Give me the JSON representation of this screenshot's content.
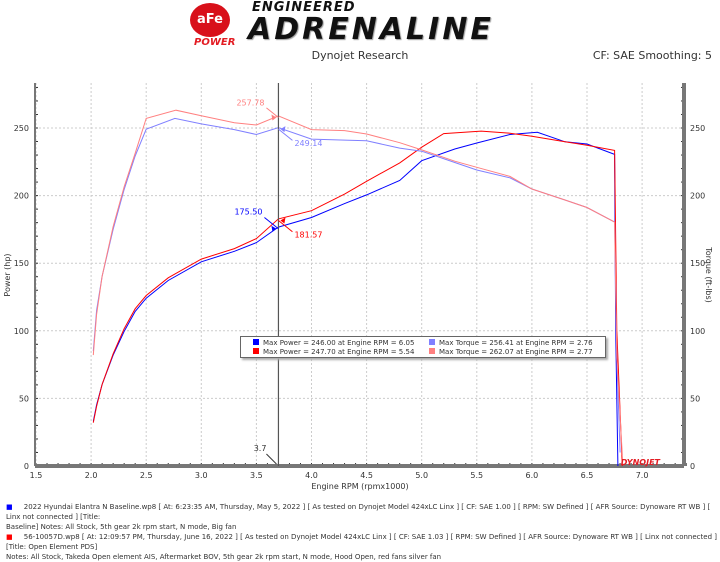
{
  "header": {
    "brand_badge": "aFe",
    "brand_sub": "POWER",
    "tagline_top": "ENGINEERED",
    "tagline_main": "ADRENALINE",
    "subtitle": "Dynojet Research",
    "cf": "CF: SAE Smoothing: 5"
  },
  "chart_data": {
    "type": "line",
    "xlabel": "Engine RPM (rpmx1000)",
    "ylabel": "Power (hp)",
    "y2label": "Torque (ft-lbs)",
    "xlim": [
      1.5,
      7.4
    ],
    "ylim": [
      0,
      283
    ],
    "grid": true,
    "xticks": [
      "1.5",
      "2.0",
      "2.5",
      "3.0",
      "3.5",
      "4.0",
      "4.5",
      "5.0",
      "5.5",
      "6.0",
      "6.5",
      "7.0"
    ],
    "yticks": [
      "0",
      "50",
      "100",
      "150",
      "200",
      "250"
    ],
    "cursor": {
      "x": 3.7,
      "label": "3.7"
    },
    "colors": {
      "power_base": "#0000ff",
      "power_mod": "#ff0000",
      "torque_base": "#8080ff",
      "torque_mod": "#ff8080"
    },
    "series": [
      {
        "key": "power_base",
        "x": [
          2.02,
          2.05,
          2.1,
          2.2,
          2.3,
          2.4,
          2.5,
          2.7,
          3.0,
          3.3,
          3.5,
          3.7,
          4.0,
          4.3,
          4.5,
          4.8,
          5.0,
          5.3,
          5.5,
          5.8,
          6.05,
          6.3,
          6.5,
          6.75,
          6.76,
          6.78
        ],
        "y": [
          33,
          45,
          60,
          82,
          100,
          115,
          125,
          138,
          150,
          160,
          165,
          175.5,
          185,
          193,
          200,
          212,
          225,
          235,
          240,
          244,
          246,
          240,
          237,
          230,
          100,
          0
        ]
      },
      {
        "key": "power_mod",
        "x": [
          2.02,
          2.05,
          2.1,
          2.2,
          2.3,
          2.4,
          2.5,
          2.7,
          3.0,
          3.3,
          3.5,
          3.7,
          4.0,
          4.3,
          4.5,
          4.8,
          5.0,
          5.2,
          5.54,
          5.8,
          6.0,
          6.3,
          6.5,
          6.75,
          6.77,
          6.82
        ],
        "y": [
          32,
          44,
          60,
          83,
          102,
          117,
          127,
          140,
          152,
          162,
          168,
          181.57,
          190,
          200,
          210,
          225,
          235,
          245,
          247.7,
          245,
          244,
          240,
          236,
          233,
          100,
          0
        ]
      },
      {
        "key": "torque_base",
        "x": [
          2.02,
          2.05,
          2.1,
          2.2,
          2.3,
          2.4,
          2.5,
          2.76,
          3.0,
          3.3,
          3.5,
          3.7,
          4.0,
          4.3,
          4.5,
          4.8,
          5.0,
          5.3,
          5.5,
          5.8,
          6.0,
          6.3,
          6.5,
          6.75,
          6.77,
          6.8
        ],
        "y": [
          85,
          115,
          140,
          175,
          205,
          230,
          250,
          256.41,
          252,
          250,
          245,
          249.14,
          243,
          240,
          240,
          236,
          232,
          225,
          220,
          212,
          205,
          197,
          190,
          180,
          80,
          10
        ]
      },
      {
        "key": "torque_mod",
        "x": [
          2.02,
          2.05,
          2.1,
          2.2,
          2.3,
          2.4,
          2.5,
          2.77,
          3.0,
          3.3,
          3.5,
          3.7,
          4.0,
          4.3,
          4.5,
          4.8,
          5.0,
          5.3,
          5.5,
          5.8,
          6.0,
          6.3,
          6.5,
          6.75,
          6.77,
          6.82
        ],
        "y": [
          82,
          112,
          140,
          177,
          207,
          232,
          258,
          262.07,
          258,
          255,
          252,
          257.78,
          250,
          247,
          245,
          240,
          233,
          226,
          222,
          213,
          205,
          197,
          190,
          180,
          80,
          8
        ]
      }
    ],
    "cursor_labels": [
      {
        "text": "257.78",
        "key": "torque_mod",
        "y": 257.78
      },
      {
        "text": "249.14",
        "key": "torque_base",
        "y": 249.14
      },
      {
        "text": "175.50",
        "key": "power_base",
        "y": 175.5
      },
      {
        "text": "181.57",
        "key": "power_mod",
        "y": 181.57
      }
    ],
    "legend": [
      {
        "key": "power_base",
        "text": "Max Power = 246.00 at Engine RPM = 6.05"
      },
      {
        "key": "torque_base",
        "text": "Max Torque = 256.41 at Engine RPM = 2.76"
      },
      {
        "key": "power_mod",
        "text": "Max Power = 247.70 at Engine RPM = 5.54"
      },
      {
        "key": "torque_mod",
        "text": "Max Torque = 262.07 at Engine RPM = 2.77"
      }
    ],
    "watermark": "DYNOJET"
  },
  "notes": {
    "run1_line1": "2022 Hyundai Elantra N Baseline.wp8 [ At: 6:23:35 AM, Thursday, May 5, 2022 ] [ As tested on Dynojet Model 424xLC Linx ] [ CF: SAE 1.00 ] [ RPM: SW Defined ] [ AFR Source: Dynoware RT WB ] [ Linx not connected ] [Title:",
    "run1_line2": "Baseline]  Notes: All Stock, 5th gear 2k rpm start, N mode, Big fan",
    "run2_line1": "56-10057D.wp8 [ At: 12:09:57 PM, Thursday, June 16, 2022 ] [ As tested on Dynojet Model 424xLC Linx ] [ CF: SAE 1.03 ] [ RPM: SW Defined ] [ AFR Source: Dynoware RT WB ] [ Linx not connected ] [Title: Open Element PDS]",
    "run2_line2": "Notes: All Stock, Takeda Open element AIS, Aftermarket BOV, 5th gear 2k rpm start, N mode, Hood Open, red fans silver fan"
  }
}
